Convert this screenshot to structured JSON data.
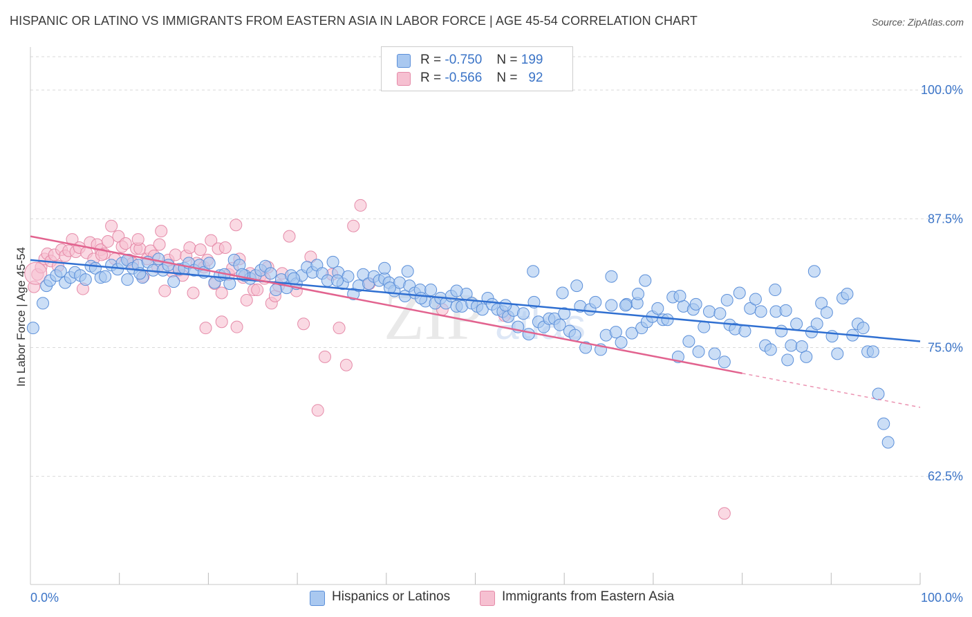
{
  "title": "HISPANIC OR LATINO VS IMMIGRANTS FROM EASTERN ASIA IN LABOR FORCE | AGE 45-54 CORRELATION CHART",
  "source": "Source: ZipAtlas.com",
  "watermark": {
    "big": "ZIP",
    "small": "atlas"
  },
  "colors": {
    "blue_fill": "#a9c8f0",
    "blue_stroke": "#5b8fd9",
    "blue_line": "#2f6fd1",
    "pink_fill": "#f6c0d1",
    "pink_stroke": "#e58aa8",
    "pink_line": "#e2638f",
    "axis_text": "#3b74c7",
    "grid": "#d9d9d9"
  },
  "legend": {
    "rows": [
      {
        "r_label": "R =",
        "r_value": "-0.750",
        "n_label": "N =",
        "n_value": "199"
      },
      {
        "r_label": "R =",
        "r_value": "-0.566",
        "n_label": "N =",
        "n_value": "92"
      }
    ]
  },
  "bottom_legend": [
    "Hispanics or Latinos",
    "Immigrants from Eastern Asia"
  ],
  "chart_data": {
    "type": "scatter",
    "xlabel": "",
    "ylabel": "In Labor Force | Age 45-54",
    "xlim": [
      0,
      100
    ],
    "ylim": [
      52,
      103.5
    ],
    "x_tick_labels": [
      {
        "value": 0,
        "label": "0.0%"
      },
      {
        "value": 100,
        "label": "100.0%"
      }
    ],
    "y_tick_labels": [
      {
        "value": 100,
        "label": "100.0%"
      },
      {
        "value": 87.5,
        "label": "87.5%"
      },
      {
        "value": 75,
        "label": "75.0%"
      },
      {
        "value": 62.5,
        "label": "62.5%"
      }
    ],
    "series": [
      {
        "name": "Hispanics or Latinos",
        "R": -0.75,
        "N": 199,
        "trend": {
          "x": [
            0,
            100
          ],
          "y": [
            83.5,
            75.6
          ]
        },
        "points": [
          [
            0.3,
            76.9
          ],
          [
            1.4,
            79.3
          ],
          [
            1.8,
            81.0
          ],
          [
            2.2,
            81.5
          ],
          [
            2.9,
            82.0
          ],
          [
            3.4,
            82.4
          ],
          [
            3.9,
            81.3
          ],
          [
            4.5,
            81.8
          ],
          [
            5.0,
            82.3
          ],
          [
            5.6,
            82.0
          ],
          [
            6.2,
            81.6
          ],
          [
            6.8,
            82.9
          ],
          [
            7.3,
            82.7
          ],
          [
            7.9,
            81.8
          ],
          [
            8.4,
            81.9
          ],
          [
            9.1,
            83.0
          ],
          [
            9.8,
            82.6
          ],
          [
            10.3,
            83.2
          ],
          [
            10.9,
            83.5
          ],
          [
            11.5,
            82.7
          ],
          [
            12.1,
            83.0
          ],
          [
            12.6,
            81.8
          ],
          [
            13.2,
            83.3
          ],
          [
            13.8,
            82.5
          ],
          [
            14.4,
            83.6
          ],
          [
            14.9,
            82.5
          ],
          [
            15.5,
            83.0
          ],
          [
            16.1,
            81.4
          ],
          [
            16.7,
            82.6
          ],
          [
            17.3,
            82.7
          ],
          [
            17.8,
            83.2
          ],
          [
            18.4,
            82.5
          ],
          [
            19.0,
            83.0
          ],
          [
            19.5,
            82.3
          ],
          [
            20.1,
            83.2
          ],
          [
            20.7,
            81.3
          ],
          [
            21.3,
            82.0
          ],
          [
            21.8,
            82.1
          ],
          [
            22.4,
            81.2
          ],
          [
            22.9,
            83.5
          ],
          [
            23.5,
            83.0
          ],
          [
            24.1,
            82.0
          ],
          [
            24.7,
            81.7
          ],
          [
            25.3,
            82.0
          ],
          [
            25.9,
            82.5
          ],
          [
            26.4,
            82.9
          ],
          [
            27.0,
            82.2
          ],
          [
            27.6,
            80.6
          ],
          [
            28.2,
            81.6
          ],
          [
            28.8,
            80.8
          ],
          [
            29.3,
            82.0
          ],
          [
            29.9,
            81.2
          ],
          [
            30.5,
            82.0
          ],
          [
            31.1,
            82.8
          ],
          [
            31.7,
            82.3
          ],
          [
            32.2,
            83.0
          ],
          [
            32.8,
            82.2
          ],
          [
            33.4,
            81.5
          ],
          [
            34.0,
            83.3
          ],
          [
            34.6,
            82.3
          ],
          [
            35.1,
            81.2
          ],
          [
            35.7,
            81.9
          ],
          [
            36.3,
            80.2
          ],
          [
            36.9,
            81.0
          ],
          [
            37.4,
            82.1
          ],
          [
            38.0,
            81.2
          ],
          [
            38.6,
            81.9
          ],
          [
            39.2,
            81.5
          ],
          [
            39.8,
            81.7
          ],
          [
            40.3,
            81.3
          ],
          [
            40.9,
            80.5
          ],
          [
            41.5,
            81.3
          ],
          [
            42.1,
            80.0
          ],
          [
            42.6,
            81.0
          ],
          [
            43.2,
            80.3
          ],
          [
            43.8,
            80.6
          ],
          [
            44.4,
            79.5
          ],
          [
            45.0,
            80.6
          ],
          [
            45.5,
            79.3
          ],
          [
            46.1,
            79.8
          ],
          [
            46.7,
            79.3
          ],
          [
            47.3,
            80.0
          ],
          [
            47.9,
            79.0
          ],
          [
            48.5,
            79.0
          ],
          [
            49.0,
            80.2
          ],
          [
            49.6,
            79.3
          ],
          [
            50.2,
            79.0
          ],
          [
            50.8,
            78.7
          ],
          [
            51.4,
            79.8
          ],
          [
            51.9,
            79.2
          ],
          [
            52.5,
            78.7
          ],
          [
            53.1,
            78.5
          ],
          [
            53.7,
            78.0
          ],
          [
            54.3,
            78.6
          ],
          [
            54.8,
            77.0
          ],
          [
            55.4,
            78.3
          ],
          [
            56.0,
            76.3
          ],
          [
            56.6,
            79.4
          ],
          [
            57.1,
            77.5
          ],
          [
            57.7,
            77.0
          ],
          [
            58.3,
            77.8
          ],
          [
            58.9,
            77.8
          ],
          [
            59.5,
            77.2
          ],
          [
            60.0,
            78.3
          ],
          [
            60.6,
            76.6
          ],
          [
            61.2,
            76.2
          ],
          [
            61.8,
            79.0
          ],
          [
            62.4,
            75.0
          ],
          [
            62.9,
            78.7
          ],
          [
            63.5,
            79.4
          ],
          [
            64.1,
            74.8
          ],
          [
            64.7,
            76.2
          ],
          [
            65.3,
            79.1
          ],
          [
            65.8,
            76.5
          ],
          [
            66.4,
            75.5
          ],
          [
            67.0,
            79.2
          ],
          [
            67.6,
            76.4
          ],
          [
            68.2,
            79.3
          ],
          [
            68.7,
            76.9
          ],
          [
            69.3,
            77.5
          ],
          [
            69.9,
            78.0
          ],
          [
            70.5,
            78.8
          ],
          [
            71.1,
            77.7
          ],
          [
            71.6,
            77.7
          ],
          [
            72.2,
            79.9
          ],
          [
            72.8,
            74.1
          ],
          [
            73.4,
            79.0
          ],
          [
            74.0,
            75.6
          ],
          [
            74.5,
            78.7
          ],
          [
            75.1,
            74.6
          ],
          [
            75.7,
            77.0
          ],
          [
            76.3,
            78.5
          ],
          [
            76.9,
            74.4
          ],
          [
            77.5,
            78.3
          ],
          [
            78.0,
            73.6
          ],
          [
            78.6,
            77.2
          ],
          [
            79.2,
            76.8
          ],
          [
            79.7,
            80.3
          ],
          [
            80.3,
            76.6
          ],
          [
            80.9,
            78.8
          ],
          [
            81.5,
            79.7
          ],
          [
            82.1,
            78.5
          ],
          [
            82.6,
            75.2
          ],
          [
            83.2,
            74.8
          ],
          [
            83.8,
            78.5
          ],
          [
            84.4,
            76.6
          ],
          [
            84.9,
            78.6
          ],
          [
            85.5,
            75.2
          ],
          [
            86.1,
            77.3
          ],
          [
            86.7,
            75.1
          ],
          [
            87.2,
            74.1
          ],
          [
            87.8,
            76.5
          ],
          [
            88.4,
            77.3
          ],
          [
            88.9,
            79.3
          ],
          [
            89.5,
            78.4
          ],
          [
            90.1,
            76.1
          ],
          [
            90.7,
            74.4
          ],
          [
            91.3,
            79.8
          ],
          [
            91.8,
            80.2
          ],
          [
            92.4,
            76.2
          ],
          [
            93.0,
            77.3
          ],
          [
            93.6,
            76.9
          ],
          [
            94.1,
            74.6
          ],
          [
            94.7,
            74.6
          ],
          [
            95.3,
            70.5
          ],
          [
            95.9,
            67.6
          ],
          [
            96.4,
            65.8
          ],
          [
            61.4,
            81.0
          ],
          [
            68.3,
            80.2
          ],
          [
            73.0,
            80.0
          ],
          [
            34.5,
            81.5
          ],
          [
            40.4,
            80.8
          ],
          [
            43.9,
            79.8
          ],
          [
            47.9,
            80.5
          ],
          [
            88.1,
            82.4
          ],
          [
            56.5,
            82.4
          ],
          [
            42.4,
            82.4
          ],
          [
            23.8,
            82.1
          ],
          [
            39.8,
            82.7
          ],
          [
            10.9,
            81.6
          ],
          [
            12.3,
            82.2
          ],
          [
            29.6,
            81.7
          ],
          [
            65.3,
            81.9
          ],
          [
            69.1,
            81.5
          ],
          [
            83.7,
            80.6
          ],
          [
            53.4,
            79.1
          ],
          [
            59.8,
            80.3
          ],
          [
            78.3,
            79.6
          ],
          [
            74.8,
            79.2
          ],
          [
            66.9,
            79.1
          ],
          [
            85.1,
            73.8
          ]
        ]
      },
      {
        "name": "Immigrants from Eastern Asia",
        "R": -0.566,
        "N": 92,
        "trend": {
          "x": [
            0,
            80
          ],
          "y": [
            85.8,
            72.5
          ]
        },
        "trend_dashed": {
          "x": [
            80,
            100
          ],
          "y": [
            72.5,
            69.2
          ]
        },
        "points": [
          [
            0.4,
            80.9
          ],
          [
            0.8,
            82.1
          ],
          [
            1.2,
            82.8
          ],
          [
            1.6,
            83.6
          ],
          [
            1.9,
            84.1
          ],
          [
            2.3,
            83.4
          ],
          [
            2.7,
            84.0
          ],
          [
            3.1,
            82.9
          ],
          [
            3.5,
            84.5
          ],
          [
            3.9,
            83.9
          ],
          [
            4.3,
            84.4
          ],
          [
            4.7,
            85.5
          ],
          [
            5.1,
            84.3
          ],
          [
            5.5,
            84.7
          ],
          [
            5.9,
            80.7
          ],
          [
            6.3,
            84.2
          ],
          [
            6.7,
            85.2
          ],
          [
            7.1,
            83.6
          ],
          [
            7.5,
            85.0
          ],
          [
            7.9,
            84.5
          ],
          [
            8.3,
            84.1
          ],
          [
            8.7,
            85.3
          ],
          [
            9.1,
            86.8
          ],
          [
            9.5,
            83.6
          ],
          [
            9.9,
            85.8
          ],
          [
            10.3,
            84.8
          ],
          [
            10.7,
            85.1
          ],
          [
            11.1,
            83.5
          ],
          [
            11.5,
            83.2
          ],
          [
            11.9,
            84.6
          ],
          [
            12.3,
            84.6
          ],
          [
            12.7,
            81.9
          ],
          [
            13.1,
            83.6
          ],
          [
            13.5,
            84.4
          ],
          [
            13.9,
            83.9
          ],
          [
            14.3,
            82.8
          ],
          [
            14.7,
            86.3
          ],
          [
            15.1,
            80.5
          ],
          [
            15.5,
            83.5
          ],
          [
            15.9,
            82.4
          ],
          [
            16.3,
            84.0
          ],
          [
            16.7,
            82.5
          ],
          [
            17.1,
            82.0
          ],
          [
            17.5,
            83.9
          ],
          [
            17.9,
            84.7
          ],
          [
            18.3,
            80.3
          ],
          [
            18.7,
            83.2
          ],
          [
            19.1,
            84.5
          ],
          [
            19.5,
            82.8
          ],
          [
            19.9,
            83.5
          ],
          [
            20.3,
            85.4
          ],
          [
            20.7,
            81.2
          ],
          [
            21.1,
            84.6
          ],
          [
            21.5,
            80.3
          ],
          [
            21.9,
            84.7
          ],
          [
            22.3,
            82.1
          ],
          [
            22.7,
            82.7
          ],
          [
            23.1,
            86.9
          ],
          [
            23.5,
            83.6
          ],
          [
            23.9,
            81.8
          ],
          [
            24.3,
            79.6
          ],
          [
            24.7,
            82.2
          ],
          [
            25.1,
            80.6
          ],
          [
            25.5,
            80.6
          ],
          [
            25.9,
            82.0
          ],
          [
            26.3,
            81.7
          ],
          [
            26.7,
            82.8
          ],
          [
            27.1,
            79.3
          ],
          [
            27.5,
            80.0
          ],
          [
            27.9,
            81.0
          ],
          [
            28.3,
            82.2
          ],
          [
            29.1,
            85.8
          ],
          [
            29.9,
            80.5
          ],
          [
            30.7,
            77.3
          ],
          [
            31.5,
            83.8
          ],
          [
            32.3,
            68.9
          ],
          [
            33.1,
            74.1
          ],
          [
            33.9,
            82.1
          ],
          [
            34.7,
            76.9
          ],
          [
            35.5,
            73.3
          ],
          [
            36.3,
            86.8
          ],
          [
            37.1,
            88.8
          ],
          [
            38.1,
            81.2
          ],
          [
            46.3,
            78.7
          ],
          [
            53.3,
            78.1
          ],
          [
            78.0,
            58.9
          ],
          [
            19.7,
            76.9
          ],
          [
            21.5,
            77.5
          ],
          [
            23.2,
            77.0
          ],
          [
            12.1,
            85.5
          ],
          [
            14.5,
            85.0
          ],
          [
            8.0,
            84.0
          ]
        ]
      }
    ]
  }
}
